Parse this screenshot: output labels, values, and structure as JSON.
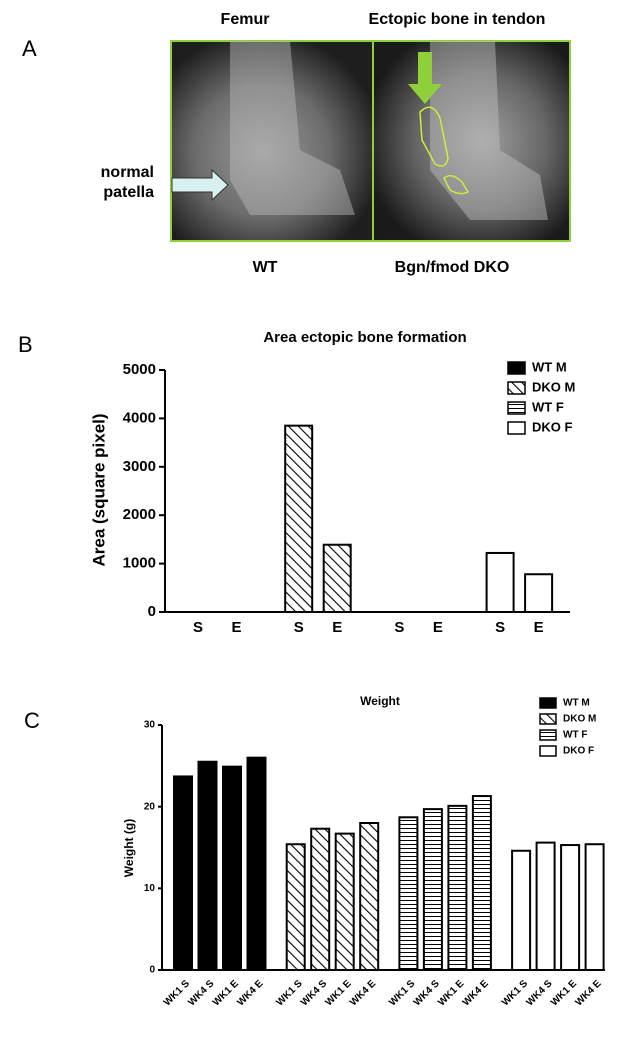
{
  "panel_labels": [
    "A",
    "B",
    "C"
  ],
  "panel_a": {
    "left_title": "Femur",
    "right_title": "Ectopic bone in tendon",
    "annotation": "normal patella",
    "left_caption": "WT",
    "right_caption": "Bgn/fmod DKO"
  },
  "chart_data": [
    {
      "type": "bar",
      "title": "Area ectopic bone formation",
      "y_label": "Area (square pixel)",
      "categories": [
        "S",
        "E"
      ],
      "series": [
        {
          "name": "WT M",
          "color": "#000000",
          "hatch": "solid",
          "values": [
            0,
            0
          ]
        },
        {
          "name": "DKO M",
          "color": "#000000",
          "hatch": "diagonal",
          "values": [
            3850,
            1390
          ]
        },
        {
          "name": "WT F",
          "color": "#000000",
          "hatch": "horizontal",
          "values": [
            0,
            0
          ]
        },
        {
          "name": "DKO F",
          "color": "#000000",
          "hatch": "none",
          "values": [
            1220,
            780
          ]
        }
      ],
      "ylim": [
        0,
        5000
      ],
      "yticks": [
        0,
        1000,
        2000,
        3000,
        4000,
        5000
      ],
      "legend": "upper right"
    },
    {
      "type": "bar",
      "title": "Weight",
      "y_label": "Weight (g)",
      "categories": [
        "WK1 S",
        "WK4 S",
        "WK1 E",
        "WK4 E"
      ],
      "series": [
        {
          "name": "WT M",
          "color": "#000000",
          "hatch": "solid",
          "values": [
            23.7,
            25.5,
            24.9,
            26.0
          ]
        },
        {
          "name": "DKO M",
          "color": "#000000",
          "hatch": "diagonal",
          "values": [
            15.4,
            17.3,
            16.7,
            18.0
          ]
        },
        {
          "name": "WT F",
          "color": "#000000",
          "hatch": "horizontal",
          "values": [
            18.7,
            19.7,
            20.1,
            21.3
          ]
        },
        {
          "name": "DKO F",
          "color": "#000000",
          "hatch": "none",
          "values": [
            14.6,
            15.6,
            15.3,
            15.4
          ]
        }
      ],
      "ylim": [
        0,
        30
      ],
      "yticks": [
        0,
        10,
        20,
        30
      ],
      "legend": "upper right"
    }
  ]
}
